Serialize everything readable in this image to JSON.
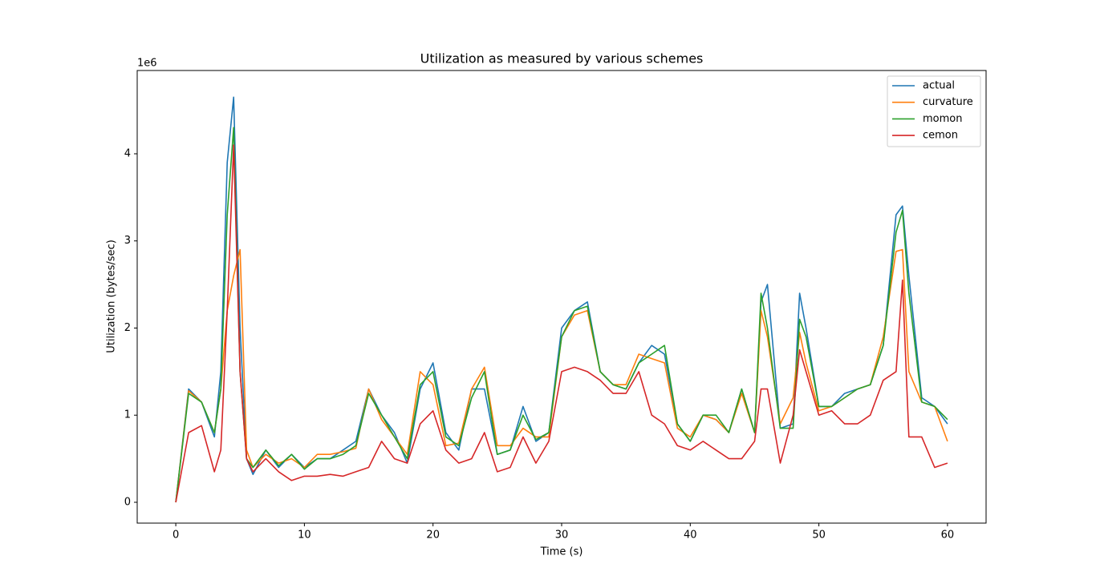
{
  "chart_data": {
    "type": "line",
    "title": "Utilization as measured by various schemes",
    "x_label": "Time (s)",
    "y_label": "Utilization (bytes/sec)",
    "y_offset_label": "1e6",
    "xlim": [
      -3,
      63
    ],
    "ylim": [
      -0.239,
      4.956
    ],
    "xticks": [
      0,
      10,
      20,
      30,
      40,
      50,
      60
    ],
    "yticks": [
      0,
      1,
      2,
      3,
      4
    ],
    "grid": false,
    "legend": "upper right",
    "x": [
      0,
      1,
      2,
      3,
      3.5,
      4,
      4.5,
      5,
      5.5,
      6,
      7,
      8,
      9,
      10,
      11,
      12,
      13,
      14,
      15,
      16,
      17,
      18,
      19,
      20,
      21,
      22,
      23,
      24,
      25,
      26,
      27,
      28,
      29,
      30,
      31,
      32,
      33,
      34,
      35,
      36,
      37,
      38,
      39,
      40,
      41,
      42,
      43,
      44,
      45,
      45.5,
      46,
      47,
      48,
      48.5,
      49,
      50,
      51,
      52,
      53,
      54,
      55,
      56,
      56.5,
      57,
      58,
      59,
      60
    ],
    "series": [
      {
        "name": "actual",
        "color": "#1f77b4",
        "values": [
          0,
          1.3,
          1.15,
          0.75,
          1.5,
          3.9,
          4.65,
          2.0,
          0.5,
          0.32,
          0.6,
          0.4,
          0.55,
          0.4,
          0.5,
          0.5,
          0.6,
          0.7,
          1.3,
          1.0,
          0.8,
          0.45,
          1.3,
          1.6,
          0.8,
          0.6,
          1.3,
          1.3,
          0.55,
          0.6,
          1.1,
          0.7,
          0.8,
          2.0,
          2.2,
          2.3,
          1.5,
          1.35,
          1.3,
          1.6,
          1.8,
          1.7,
          0.9,
          0.7,
          1.0,
          0.95,
          0.8,
          1.3,
          0.8,
          2.3,
          2.5,
          0.85,
          0.9,
          2.4,
          2.0,
          1.1,
          1.1,
          1.25,
          1.3,
          1.35,
          1.8,
          3.3,
          3.4,
          2.6,
          1.2,
          1.1,
          0.9
        ]
      },
      {
        "name": "curvature",
        "color": "#ff7f0e",
        "values": [
          0,
          1.28,
          1.15,
          0.8,
          1.3,
          2.2,
          2.6,
          2.9,
          0.6,
          0.4,
          0.55,
          0.45,
          0.5,
          0.4,
          0.55,
          0.55,
          0.58,
          0.62,
          1.3,
          0.95,
          0.75,
          0.55,
          1.5,
          1.35,
          0.65,
          0.68,
          1.3,
          1.55,
          0.65,
          0.65,
          0.85,
          0.75,
          0.75,
          1.9,
          2.15,
          2.2,
          1.5,
          1.35,
          1.35,
          1.7,
          1.65,
          1.6,
          0.85,
          0.75,
          1.0,
          0.95,
          0.8,
          1.25,
          0.8,
          2.2,
          1.9,
          0.9,
          1.2,
          1.95,
          1.6,
          1.05,
          1.1,
          1.2,
          1.3,
          1.35,
          1.9,
          2.88,
          2.9,
          1.5,
          1.15,
          1.1,
          0.7
        ]
      },
      {
        "name": "momon",
        "color": "#2ca02c",
        "values": [
          0,
          1.25,
          1.15,
          0.8,
          1.3,
          3.3,
          4.3,
          1.5,
          0.5,
          0.4,
          0.6,
          0.42,
          0.55,
          0.38,
          0.5,
          0.5,
          0.55,
          0.65,
          1.25,
          1.0,
          0.75,
          0.5,
          1.35,
          1.5,
          0.75,
          0.65,
          1.2,
          1.5,
          0.55,
          0.6,
          1.0,
          0.72,
          0.8,
          1.9,
          2.2,
          2.25,
          1.5,
          1.35,
          1.3,
          1.6,
          1.7,
          1.8,
          0.9,
          0.7,
          1.0,
          1.0,
          0.8,
          1.3,
          0.8,
          2.4,
          2.0,
          0.85,
          0.85,
          2.1,
          1.9,
          1.1,
          1.1,
          1.2,
          1.3,
          1.35,
          1.8,
          3.1,
          3.35,
          2.4,
          1.15,
          1.1,
          0.95
        ]
      },
      {
        "name": "cemon",
        "color": "#d62728",
        "values": [
          0,
          0.8,
          0.88,
          0.35,
          0.6,
          2.2,
          4.1,
          1.5,
          0.5,
          0.35,
          0.5,
          0.35,
          0.25,
          0.3,
          0.3,
          0.32,
          0.3,
          0.35,
          0.4,
          0.7,
          0.5,
          0.45,
          0.9,
          1.05,
          0.6,
          0.45,
          0.5,
          0.8,
          0.35,
          0.4,
          0.75,
          0.45,
          0.7,
          1.5,
          1.55,
          1.5,
          1.4,
          1.25,
          1.25,
          1.5,
          1.0,
          0.9,
          0.65,
          0.6,
          0.7,
          0.6,
          0.5,
          0.5,
          0.7,
          1.3,
          1.3,
          0.45,
          1.0,
          1.75,
          1.5,
          1.0,
          1.05,
          0.9,
          0.9,
          1.0,
          1.4,
          1.5,
          2.55,
          0.75,
          0.75,
          0.4,
          0.45
        ]
      }
    ]
  }
}
